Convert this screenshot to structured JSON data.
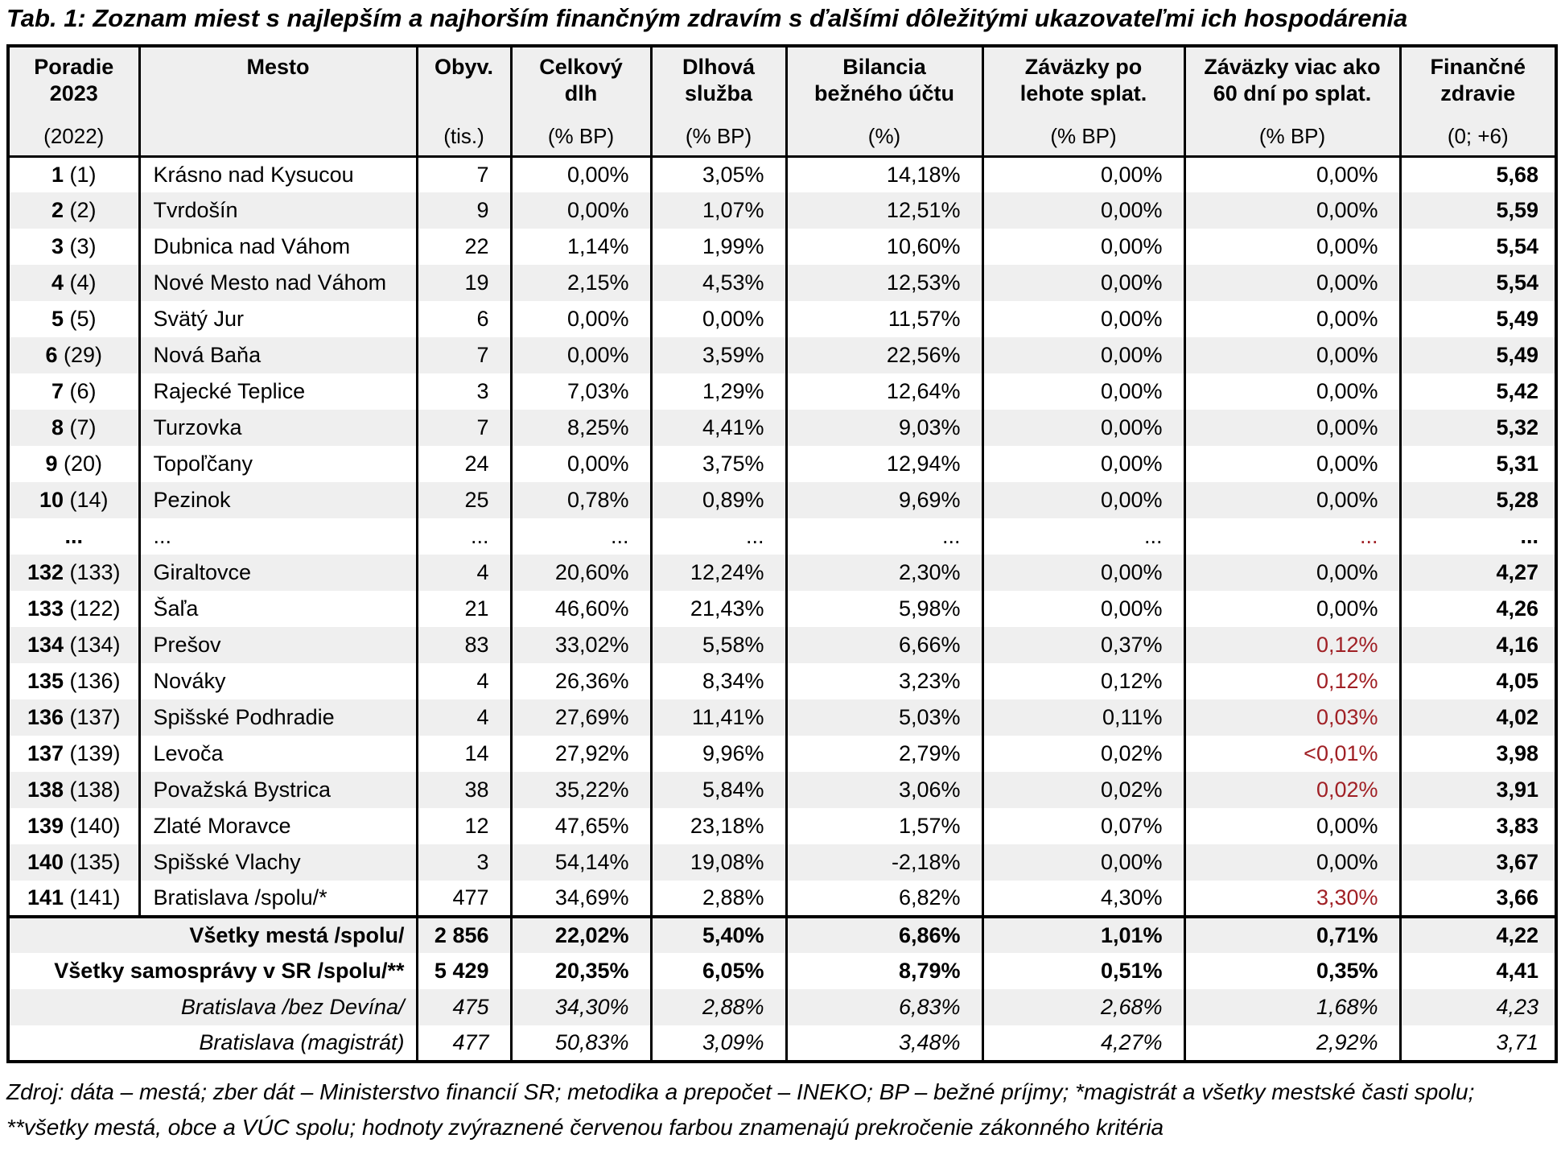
{
  "title": "Tab. 1: Zoznam miest s najlepším a najhorším finančným zdravím s ďalšími dôležitými ukazovateľmi ich hospodárenia",
  "colors": {
    "highlight_red": "#A02025",
    "row_stripe": "#EFEFEF",
    "header_bg": "#EFEFEF",
    "border": "#000000"
  },
  "columns": [
    {
      "title_lines": [
        "Poradie",
        "2023"
      ],
      "unit": "(2022)"
    },
    {
      "title_lines": [
        "Mesto"
      ],
      "unit": ""
    },
    {
      "title_lines": [
        "Obyv."
      ],
      "unit": "(tis.)"
    },
    {
      "title_lines": [
        "Celkový",
        "dlh"
      ],
      "unit": "(% BP)"
    },
    {
      "title_lines": [
        "Dlhová",
        "služba"
      ],
      "unit": "(% BP)"
    },
    {
      "title_lines": [
        "Bilancia",
        "bežného účtu"
      ],
      "unit": "(%)"
    },
    {
      "title_lines": [
        "Záväzky po",
        "lehote splat."
      ],
      "unit": "(% BP)"
    },
    {
      "title_lines": [
        "Záväzky viac ako",
        "60 dní po splat."
      ],
      "unit": "(% BP)"
    },
    {
      "title_lines": [
        "Finančné",
        "zdravie"
      ],
      "unit": "(0; +6)"
    }
  ],
  "rows": [
    {
      "rank": "1",
      "prev": "(1)",
      "city": "Krásno nad Kysucou",
      "values": [
        "7",
        "0,00%",
        "3,05%",
        "14,18%",
        "0,00%",
        "0,00%",
        "5,68"
      ],
      "red": []
    },
    {
      "rank": "2",
      "prev": "(2)",
      "city": "Tvrdošín",
      "values": [
        "9",
        "0,00%",
        "1,07%",
        "12,51%",
        "0,00%",
        "0,00%",
        "5,59"
      ],
      "red": []
    },
    {
      "rank": "3",
      "prev": "(3)",
      "city": "Dubnica nad Váhom",
      "values": [
        "22",
        "1,14%",
        "1,99%",
        "10,60%",
        "0,00%",
        "0,00%",
        "5,54"
      ],
      "red": []
    },
    {
      "rank": "4",
      "prev": "(4)",
      "city": "Nové Mesto nad Váhom",
      "values": [
        "19",
        "2,15%",
        "4,53%",
        "12,53%",
        "0,00%",
        "0,00%",
        "5,54"
      ],
      "red": []
    },
    {
      "rank": "5",
      "prev": "(5)",
      "city": "Svätý Jur",
      "values": [
        "6",
        "0,00%",
        "0,00%",
        "11,57%",
        "0,00%",
        "0,00%",
        "5,49"
      ],
      "red": []
    },
    {
      "rank": "6",
      "prev": "(29)",
      "city": "Nová Baňa",
      "values": [
        "7",
        "0,00%",
        "3,59%",
        "22,56%",
        "0,00%",
        "0,00%",
        "5,49"
      ],
      "red": []
    },
    {
      "rank": "7",
      "prev": "(6)",
      "city": "Rajecké Teplice",
      "values": [
        "3",
        "7,03%",
        "1,29%",
        "12,64%",
        "0,00%",
        "0,00%",
        "5,42"
      ],
      "red": []
    },
    {
      "rank": "8",
      "prev": "(7)",
      "city": "Turzovka",
      "values": [
        "7",
        "8,25%",
        "4,41%",
        "9,03%",
        "0,00%",
        "0,00%",
        "5,32"
      ],
      "red": []
    },
    {
      "rank": "9",
      "prev": "(20)",
      "city": "Topoľčany",
      "values": [
        "24",
        "0,00%",
        "3,75%",
        "12,94%",
        "0,00%",
        "0,00%",
        "5,31"
      ],
      "red": []
    },
    {
      "rank": "10",
      "prev": "(14)",
      "city": "Pezinok",
      "values": [
        "25",
        "0,78%",
        "0,89%",
        "9,69%",
        "0,00%",
        "0,00%",
        "5,28"
      ],
      "red": []
    },
    {
      "rank": "...",
      "prev": "",
      "city": "...",
      "values": [
        "...",
        "...",
        "...",
        "...",
        "...",
        "...",
        "..."
      ],
      "red": [
        5
      ]
    },
    {
      "rank": "132",
      "prev": "(133)",
      "city": "Giraltovce",
      "values": [
        "4",
        "20,60%",
        "12,24%",
        "2,30%",
        "0,00%",
        "0,00%",
        "4,27"
      ],
      "red": []
    },
    {
      "rank": "133",
      "prev": "(122)",
      "city": "Šaľa",
      "values": [
        "21",
        "46,60%",
        "21,43%",
        "5,98%",
        "0,00%",
        "0,00%",
        "4,26"
      ],
      "red": []
    },
    {
      "rank": "134",
      "prev": "(134)",
      "city": "Prešov",
      "values": [
        "83",
        "33,02%",
        "5,58%",
        "6,66%",
        "0,37%",
        "0,12%",
        "4,16"
      ],
      "red": [
        5
      ]
    },
    {
      "rank": "135",
      "prev": "(136)",
      "city": "Nováky",
      "values": [
        "4",
        "26,36%",
        "8,34%",
        "3,23%",
        "0,12%",
        "0,12%",
        "4,05"
      ],
      "red": [
        5
      ]
    },
    {
      "rank": "136",
      "prev": "(137)",
      "city": "Spišské Podhradie",
      "values": [
        "4",
        "27,69%",
        "11,41%",
        "5,03%",
        "0,11%",
        "0,03%",
        "4,02"
      ],
      "red": [
        5
      ]
    },
    {
      "rank": "137",
      "prev": "(139)",
      "city": "Levoča",
      "values": [
        "14",
        "27,92%",
        "9,96%",
        "2,79%",
        "0,02%",
        "<0,01%",
        "3,98"
      ],
      "red": [
        5
      ]
    },
    {
      "rank": "138",
      "prev": "(138)",
      "city": "Považská Bystrica",
      "values": [
        "38",
        "35,22%",
        "5,84%",
        "3,06%",
        "0,02%",
        "0,02%",
        "3,91"
      ],
      "red": [
        5
      ]
    },
    {
      "rank": "139",
      "prev": "(140)",
      "city": "Zlaté Moravce",
      "values": [
        "12",
        "47,65%",
        "23,18%",
        "1,57%",
        "0,07%",
        "0,00%",
        "3,83"
      ],
      "red": []
    },
    {
      "rank": "140",
      "prev": "(135)",
      "city": "Spišské Vlachy",
      "values": [
        "3",
        "54,14%",
        "19,08%",
        "-2,18%",
        "0,00%",
        "0,00%",
        "3,67"
      ],
      "red": []
    },
    {
      "rank": "141",
      "prev": "(141)",
      "city": "Bratislava /spolu/*",
      "values": [
        "477",
        "34,69%",
        "2,88%",
        "6,82%",
        "4,30%",
        "3,30%",
        "3,66"
      ],
      "red": [
        5
      ]
    }
  ],
  "summary": [
    {
      "label": "Všetky mestá /spolu/",
      "style": "bold",
      "values": [
        "2 856",
        "22,02%",
        "5,40%",
        "6,86%",
        "1,01%",
        "0,71%",
        "4,22"
      ]
    },
    {
      "label": "Všetky samosprávy v SR /spolu/**",
      "style": "bold",
      "values": [
        "5 429",
        "20,35%",
        "6,05%",
        "8,79%",
        "0,51%",
        "0,35%",
        "4,41"
      ]
    },
    {
      "label": "Bratislava /bez Devína/",
      "style": "italic",
      "values": [
        "475",
        "34,30%",
        "2,88%",
        "6,83%",
        "2,68%",
        "1,68%",
        "4,23"
      ]
    },
    {
      "label": "Bratislava (magistrát)",
      "style": "italic",
      "values": [
        "477",
        "50,83%",
        "3,09%",
        "3,48%",
        "4,27%",
        "2,92%",
        "3,71"
      ]
    }
  ],
  "footnote_lines": [
    "Zdroj: dáta – mestá; zber dát – Ministerstvo financií SR; metodika a prepočet – INEKO; BP – bežné príjmy; *magistrát a všetky mestské časti",
    "spolu; **všetky mestá, obce a VÚC spolu;  hodnoty zvýraznené červenou farbou znamenajú prekročenie zákonného kritéria"
  ]
}
